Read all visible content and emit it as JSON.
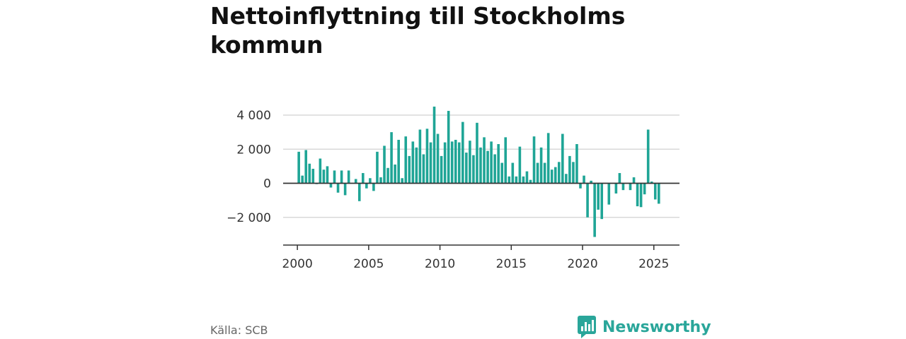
{
  "title": "Nettoinflyttning till Stockholms kommun",
  "source": "Källa: SCB",
  "brand": "Newsworthy",
  "colors": {
    "bar": "#1fa596",
    "grid": "#d9d9d9",
    "zero": "#333333",
    "brand": "#2aa69a"
  },
  "chart_data": {
    "type": "bar",
    "xlim": [
      1999,
      2026.8
    ],
    "ylim": [
      -3600,
      4600
    ],
    "yticks": [
      4000,
      2000,
      0,
      -2000
    ],
    "ytick_labels": [
      "4 000",
      "2 000",
      "0",
      "−2 000"
    ],
    "xticks": [
      2000,
      2005,
      2010,
      2015,
      2020,
      2025
    ],
    "xtick_labels": [
      "2000",
      "2005",
      "2010",
      "2015",
      "2020",
      "2025"
    ],
    "x": [
      2000.1,
      2000.35,
      2000.6,
      2000.85,
      2001.1,
      2001.35,
      2001.6,
      2001.85,
      2002.1,
      2002.35,
      2002.6,
      2002.85,
      2003.1,
      2003.35,
      2003.6,
      2003.85,
      2004.1,
      2004.35,
      2004.6,
      2004.85,
      2005.1,
      2005.35,
      2005.6,
      2005.85,
      2006.1,
      2006.35,
      2006.6,
      2006.85,
      2007.1,
      2007.35,
      2007.6,
      2007.85,
      2008.1,
      2008.35,
      2008.6,
      2008.85,
      2009.1,
      2009.35,
      2009.6,
      2009.85,
      2010.1,
      2010.35,
      2010.6,
      2010.85,
      2011.1,
      2011.35,
      2011.6,
      2011.85,
      2012.1,
      2012.35,
      2012.6,
      2012.85,
      2013.1,
      2013.35,
      2013.6,
      2013.85,
      2014.1,
      2014.35,
      2014.6,
      2014.85,
      2015.1,
      2015.35,
      2015.6,
      2015.85,
      2016.1,
      2016.35,
      2016.6,
      2016.85,
      2017.1,
      2017.35,
      2017.6,
      2017.85,
      2018.1,
      2018.35,
      2018.6,
      2018.85,
      2019.1,
      2019.35,
      2019.6,
      2019.85,
      2020.1,
      2020.35,
      2020.6,
      2020.85,
      2021.1,
      2021.35,
      2021.6,
      2021.85,
      2022.1,
      2022.35,
      2022.6,
      2022.85,
      2023.1,
      2023.35,
      2023.6,
      2023.85,
      2024.1,
      2024.35,
      2024.6,
      2024.85,
      2025.1,
      2025.35
    ],
    "values": [
      1850,
      450,
      1950,
      1150,
      850,
      -50,
      1450,
      800,
      1000,
      -250,
      750,
      -550,
      750,
      -700,
      750,
      0,
      250,
      -1050,
      600,
      -300,
      300,
      -450,
      1850,
      350,
      2200,
      900,
      3000,
      1100,
      2550,
      300,
      2750,
      1600,
      2450,
      2100,
      3150,
      1700,
      3200,
      2400,
      4500,
      2900,
      1600,
      2400,
      4250,
      2450,
      2550,
      2400,
      3600,
      1800,
      2500,
      1650,
      3550,
      2100,
      2700,
      1900,
      2450,
      1700,
      2300,
      1200,
      2700,
      400,
      1200,
      400,
      2150,
      400,
      700,
      200,
      2750,
      1200,
      2100,
      1200,
      2950,
      800,
      950,
      1250,
      2900,
      550,
      1600,
      1250,
      2300,
      -300,
      450,
      -2000,
      150,
      -3150,
      -1550,
      -2100,
      0,
      -1250,
      0,
      -600,
      600,
      -400,
      0,
      -400,
      350,
      -1350,
      -1400,
      -650,
      3150,
      100,
      -950,
      -1200
    ]
  }
}
